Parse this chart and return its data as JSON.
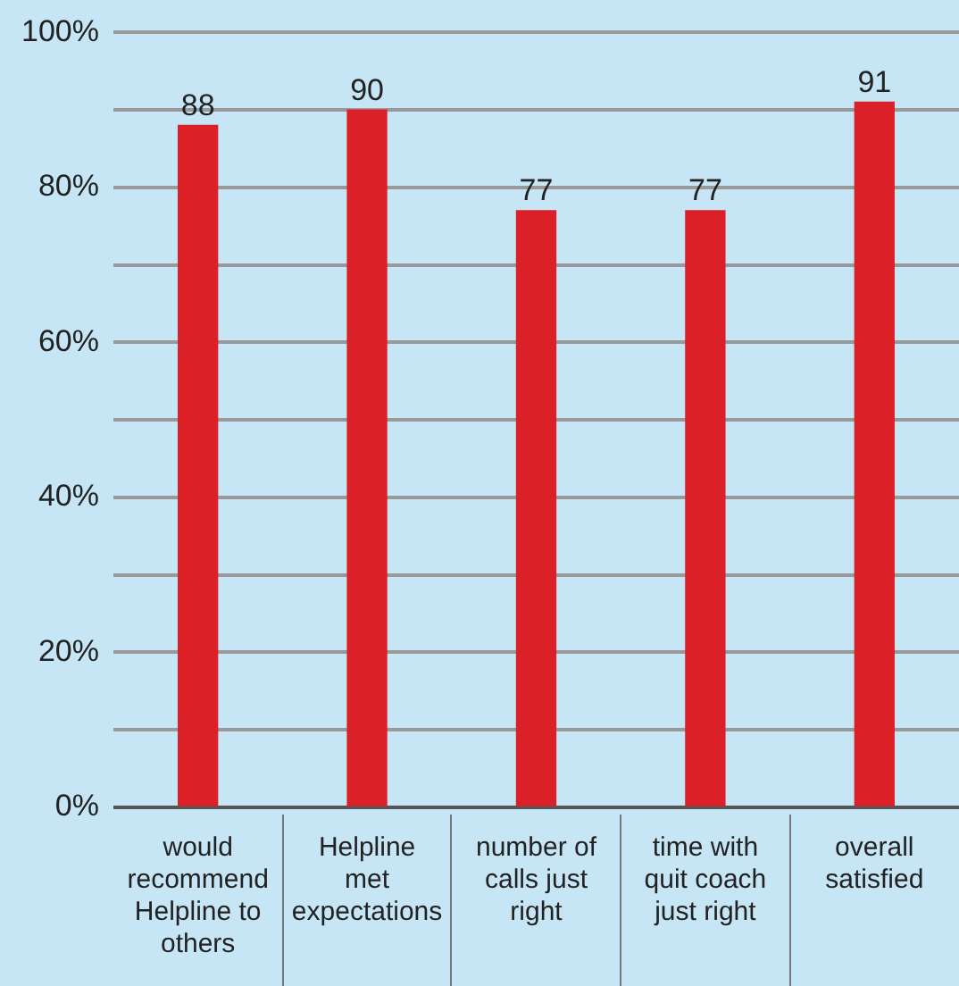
{
  "chart_data": {
    "type": "bar",
    "categories": [
      "would recommend Helpline to others",
      "Helpline met expectations",
      "number of calls just right",
      "time with quit coach just right",
      "overall satisfied"
    ],
    "values": [
      88,
      90,
      77,
      77,
      91
    ],
    "color": "#dc2028",
    "ylim": [
      0,
      100
    ],
    "yticks": [
      {
        "value": 0,
        "label": "0%"
      },
      {
        "value": 10,
        "label": null
      },
      {
        "value": 20,
        "label": "20%"
      },
      {
        "value": 30,
        "label": null
      },
      {
        "value": 40,
        "label": "40%"
      },
      {
        "value": 50,
        "label": null
      },
      {
        "value": 60,
        "label": "60%"
      },
      {
        "value": 70,
        "label": null
      },
      {
        "value": 80,
        "label": "80%"
      },
      {
        "value": 90,
        "label": null
      },
      {
        "value": 100,
        "label": "100%"
      }
    ],
    "grid": "y",
    "data_labels": true,
    "legend": false
  }
}
